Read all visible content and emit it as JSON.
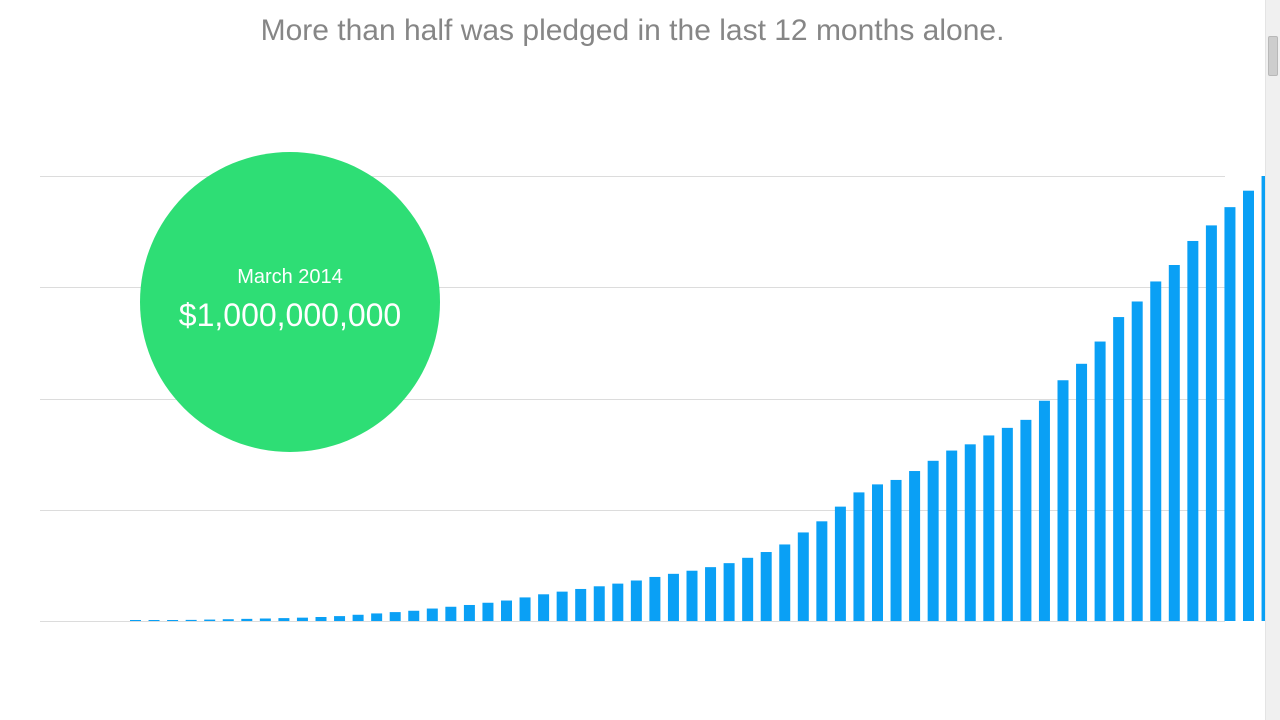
{
  "headline": "More than half was pledged in the last 12 months alone.",
  "colors": {
    "bar": "#0aa0f5",
    "bubble": "#2ede75",
    "gridline": "#dcdcdc",
    "headline": "#868686"
  },
  "callout": {
    "date": "March 2014",
    "amount": "$1,000,000,000"
  },
  "chart_data": {
    "type": "bar",
    "title": "",
    "xlabel": "",
    "ylabel": "",
    "ylim": [
      0,
      1000000000
    ],
    "grid": true,
    "gridlines": 5,
    "tick_labels_shown": false,
    "values": [
      1000000,
      1500000,
      2000000,
      2500000,
      3200000,
      4000000,
      4800000,
      5600000,
      6500000,
      7500000,
      9000000,
      11000000,
      14000000,
      17000000,
      20000000,
      23000000,
      28000000,
      32000000,
      36000000,
      41000000,
      46000000,
      53000000,
      60000000,
      66000000,
      72000000,
      78000000,
      84000000,
      91000000,
      99000000,
      106000000,
      113000000,
      121000000,
      130000000,
      142000000,
      155000000,
      172000000,
      199000000,
      224000000,
      257000000,
      289000000,
      307000000,
      317000000,
      337000000,
      360000000,
      383000000,
      397000000,
      417000000,
      434000000,
      452000000,
      495000000,
      541000000,
      578000000,
      628000000,
      683000000,
      718000000,
      763000000,
      800000000,
      854000000,
      889000000,
      930000000,
      967000000,
      1000000000
    ]
  }
}
